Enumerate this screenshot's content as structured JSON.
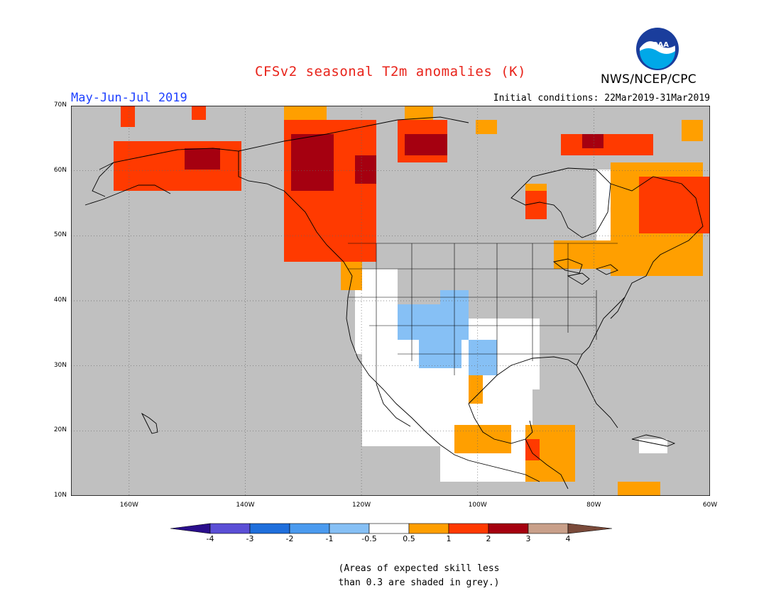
{
  "header": {
    "title": "CFSv2 seasonal T2m anomalies (K)",
    "period": "May-Jun-Jul 2019",
    "initial_conditions": "Initial conditions: 22Mar2019-31Mar2019",
    "agency": "NWS/NCEP/CPC",
    "logo_text": "NOAA"
  },
  "map": {
    "lat_labels": [
      "70N",
      "60N",
      "50N",
      "40N",
      "30N",
      "20N",
      "10N"
    ],
    "lon_labels": [
      "160W",
      "140W",
      "120W",
      "100W",
      "80W",
      "60W"
    ],
    "lat_range": [
      10,
      70
    ],
    "lon_range": [
      -170,
      -60
    ]
  },
  "colorbar": {
    "labels": [
      "-4",
      "-3",
      "-2",
      "-1",
      "-0.5",
      "0.5",
      "1",
      "2",
      "3",
      "4"
    ],
    "colors": {
      "lt_m4": "#2a0e8c",
      "m4_m3": "#5b4fd6",
      "m3_m2": "#1f6fdc",
      "m2_m1": "#4b9bef",
      "m1_m05": "#86c0f5",
      "m05_05": "#ffffff",
      "p05_1": "#ff9f00",
      "p1_2": "#ff3a00",
      "p2_3": "#a50010",
      "p3_4": "#c9a08a",
      "gt_4": "#7a4a3a"
    }
  },
  "note": {
    "line1": "(Areas of expected skill less",
    "line2": "than 0.3 are shaded in grey.)"
  }
}
